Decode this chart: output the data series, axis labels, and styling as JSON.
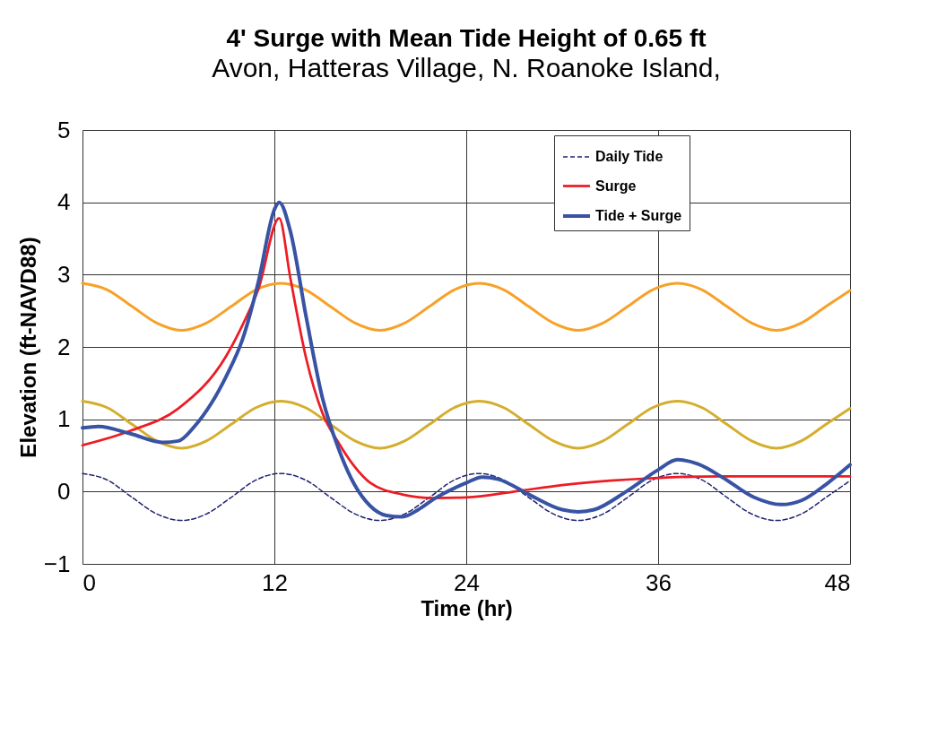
{
  "chart_data": {
    "type": "line",
    "title": "4' Surge with Mean Tide Height of 0.65 ft",
    "subtitle": "Avon, Hatteras Village, N. Roanoke Island,",
    "xlabel": "Time (hr)",
    "ylabel": "Elevation (ft-NAVD88)",
    "x": [
      0,
      1.55,
      3.1,
      4.65,
      6.2,
      7.75,
      9.3,
      10.85,
      12.4,
      13.95,
      15.5,
      17.05,
      18.6,
      20.15,
      21.7,
      23.25,
      24.8,
      26.35,
      27.9,
      29.45,
      31,
      32.55,
      34.1,
      35.65,
      37.2,
      38.75,
      40.3,
      41.85,
      43.4,
      44.95,
      46.5,
      48
    ],
    "series": [
      {
        "color": "#f7a128",
        "line_style": "solid",
        "values": [
          2.88,
          2.79,
          2.56,
          2.33,
          2.23,
          2.33,
          2.56,
          2.79,
          2.88,
          2.79,
          2.56,
          2.33,
          2.23,
          2.33,
          2.56,
          2.79,
          2.88,
          2.79,
          2.56,
          2.33,
          2.23,
          2.33,
          2.56,
          2.79,
          2.88,
          2.79,
          2.56,
          2.33,
          2.23,
          2.33,
          2.56,
          2.78
        ]
      },
      {
        "color": "#d4ae2c",
        "line_style": "solid",
        "values": [
          1.25,
          1.16,
          0.93,
          0.7,
          0.6,
          0.7,
          0.93,
          1.16,
          1.25,
          1.16,
          0.93,
          0.7,
          0.6,
          0.7,
          0.93,
          1.16,
          1.25,
          1.16,
          0.93,
          0.7,
          0.6,
          0.7,
          0.93,
          1.16,
          1.25,
          1.16,
          0.93,
          0.7,
          0.6,
          0.7,
          0.93,
          1.15
        ]
      },
      {
        "name": "Daily Tide",
        "color": "#1f2270",
        "line_style": "dashed",
        "values": [
          0.25,
          0.16,
          -0.08,
          -0.31,
          -0.4,
          -0.31,
          -0.08,
          0.16,
          0.25,
          0.16,
          -0.08,
          -0.31,
          -0.4,
          -0.31,
          -0.08,
          0.16,
          0.25,
          0.16,
          -0.08,
          -0.31,
          -0.4,
          -0.31,
          -0.08,
          0.16,
          0.25,
          0.16,
          -0.08,
          -0.31,
          -0.4,
          -0.31,
          -0.08,
          0.15
        ]
      },
      {
        "name": "Surge",
        "color": "#ed1c24",
        "line_style": "solid",
        "x": [
          0,
          3,
          6,
          9,
          10,
          11,
          12.3,
          13,
          14,
          15,
          16,
          17,
          18,
          20,
          22,
          24,
          27,
          30,
          33,
          36,
          40,
          44,
          48
        ],
        "values": [
          0.64,
          0.84,
          1.15,
          1.88,
          2.3,
          2.8,
          3.78,
          2.95,
          1.83,
          1.09,
          0.68,
          0.35,
          0.12,
          -0.04,
          -0.09,
          -0.08,
          0,
          0.09,
          0.15,
          0.19,
          0.21,
          0.21,
          0.21
        ]
      },
      {
        "name": "Tide + Surge",
        "color": "#3953a4",
        "line_style": "solid",
        "x": [
          0,
          1,
          3,
          5,
          6,
          7,
          8,
          9,
          10,
          11,
          12,
          12.3,
          13,
          14,
          15,
          16,
          17,
          18,
          19,
          20,
          21,
          22,
          24,
          25,
          26,
          28,
          30,
          31,
          32,
          34,
          36,
          37.2,
          38.5,
          40,
          42,
          43.7,
          45,
          46.5,
          48
        ],
        "values": [
          0.88,
          0.9,
          0.8,
          0.68,
          0.7,
          0.9,
          1.2,
          1.6,
          2.1,
          2.9,
          3.9,
          4.0,
          3.6,
          2.4,
          1.3,
          0.6,
          0.1,
          -0.2,
          -0.33,
          -0.35,
          -0.25,
          -0.1,
          0.12,
          0.2,
          0.17,
          -0.05,
          -0.25,
          -0.28,
          -0.25,
          0,
          0.3,
          0.44,
          0.38,
          0.2,
          -0.08,
          -0.18,
          -0.12,
          0.1,
          0.37
        ]
      }
    ],
    "xlim": [
      0,
      48
    ],
    "xticks": [
      0,
      12,
      24,
      36,
      48
    ],
    "ylim": [
      -1,
      5
    ],
    "yticks": [
      -1,
      0,
      1,
      2,
      3,
      4,
      5
    ],
    "grid": true,
    "legend": "top right",
    "marker": "none"
  }
}
